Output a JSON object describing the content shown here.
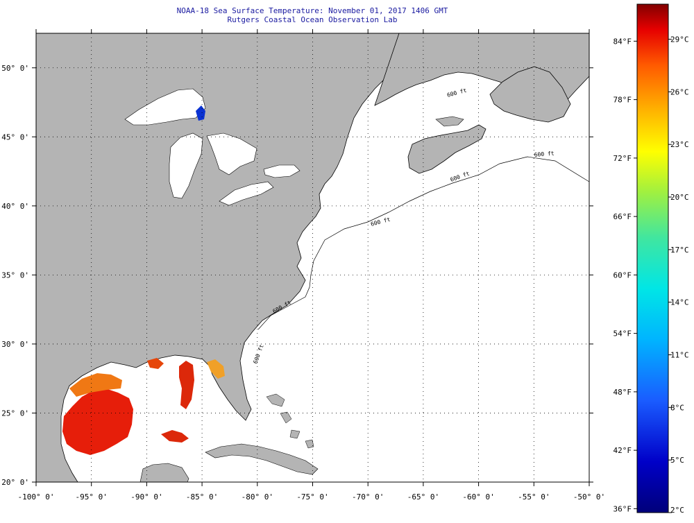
{
  "header": {
    "title": "NOAA-18 Sea Surface Temperature:  November 01, 2017 1406 GMT",
    "subtitle": "Rutgers Coastal Ocean Observation Lab"
  },
  "map": {
    "lon_range": [
      -100,
      -50
    ],
    "lat_range": [
      20,
      52.5
    ],
    "lon_ticks": [
      {
        "value": -100,
        "label": "-100° 0'"
      },
      {
        "value": -95,
        "label": "-95° 0'"
      },
      {
        "value": -90,
        "label": "-90° 0'"
      },
      {
        "value": -85,
        "label": "-85° 0'"
      },
      {
        "value": -80,
        "label": "-80° 0'"
      },
      {
        "value": -75,
        "label": "-75° 0'"
      },
      {
        "value": -70,
        "label": "-70° 0'"
      },
      {
        "value": -65,
        "label": "-65° 0'"
      },
      {
        "value": -60,
        "label": "-60° 0'"
      },
      {
        "value": -55,
        "label": "-55° 0'"
      },
      {
        "value": -50,
        "label": "-50° 0'"
      }
    ],
    "lat_ticks": [
      {
        "value": 20,
        "label": "20° 0'"
      },
      {
        "value": 25,
        "label": "25° 0'"
      },
      {
        "value": 30,
        "label": "30° 0'"
      },
      {
        "value": 35,
        "label": "35° 0'"
      },
      {
        "value": 40,
        "label": "40° 0'"
      },
      {
        "value": 45,
        "label": "45° 0'"
      },
      {
        "value": 50,
        "label": "50° 0'"
      }
    ],
    "contour_labels": [
      "600 ft",
      "600 ft",
      "600 ft",
      "600 ft",
      "600 ft",
      "600 ft"
    ],
    "grid": true,
    "colors": {
      "land": "#b4b4b4",
      "ocean_no_data": "#ffffff",
      "great_lakes_no_data": "#ffffff",
      "coastline": "#000000"
    }
  },
  "colorbar": {
    "min_c": 2,
    "max_c": 31,
    "celsius_labels": [
      {
        "value": 29,
        "label": "29°C"
      },
      {
        "value": 26,
        "label": "26°C"
      },
      {
        "value": 23,
        "label": "23°C"
      },
      {
        "value": 20,
        "label": "20°C"
      },
      {
        "value": 17,
        "label": "17°C"
      },
      {
        "value": 14,
        "label": "14°C"
      },
      {
        "value": 11,
        "label": "11°C"
      },
      {
        "value": 8,
        "label": "8°C"
      },
      {
        "value": 5,
        "label": "5°C"
      },
      {
        "value": 2,
        "label": "2°C"
      }
    ],
    "fahrenheit_labels": [
      {
        "value": 84,
        "label": "84°F"
      },
      {
        "value": 78,
        "label": "78°F"
      },
      {
        "value": 72,
        "label": "72°F"
      },
      {
        "value": 66,
        "label": "66°F"
      },
      {
        "value": 60,
        "label": "60°F"
      },
      {
        "value": 54,
        "label": "54°F"
      },
      {
        "value": 48,
        "label": "48°F"
      },
      {
        "value": 42,
        "label": "42°F"
      },
      {
        "value": 36,
        "label": "36°F"
      }
    ]
  }
}
